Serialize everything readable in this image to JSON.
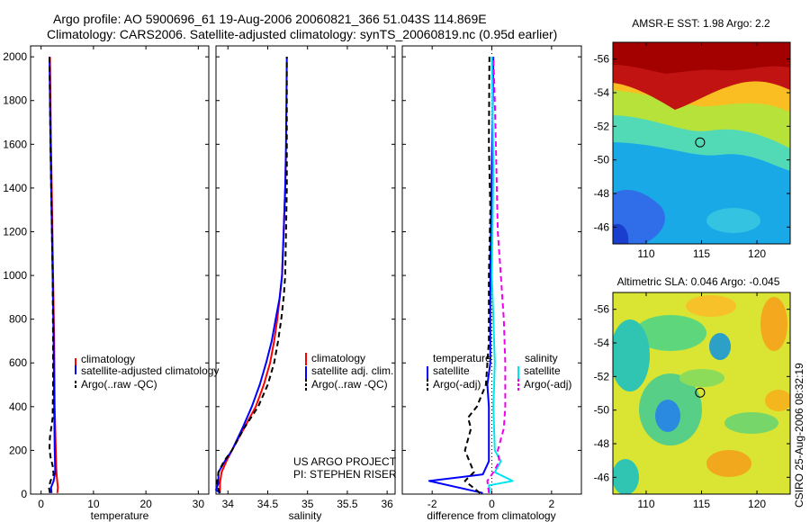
{
  "header": {
    "line1": "Argo profile: AO 5900696_61 19-Aug-2006 20060821_366 51.043S 114.869E",
    "line2": "Climatology: CARS2006. Satellite-adjusted climatology: synTS_20060819.nc (0.95d earlier)"
  },
  "side_stamp": "CSIRO 25-Aug-2006 08:32:19",
  "colors": {
    "red": "#ff0000",
    "blue": "#0000ff",
    "black": "#000000",
    "cyan": "#00e5ee",
    "magenta": "#ee00ee"
  },
  "chart_data": [
    {
      "id": "temperature",
      "type": "line",
      "xlabel": "temperature",
      "xlim": [
        -2,
        32
      ],
      "ylim": [
        2050,
        0
      ],
      "xticks": [
        0,
        10,
        20,
        30
      ],
      "yticks": [
        0,
        200,
        400,
        600,
        800,
        1000,
        1200,
        1400,
        1600,
        1800,
        2000
      ],
      "legend": [
        "climatology",
        "satellite-adjusted climatology",
        "Argo(..raw -QC)"
      ],
      "series": [
        {
          "name": "climatology",
          "color": "red",
          "dash": "",
          "points": [
            [
              3.1,
              5
            ],
            [
              3.2,
              30
            ],
            [
              3.0,
              80
            ],
            [
              2.9,
              120
            ],
            [
              2.8,
              200
            ],
            [
              2.6,
              400
            ],
            [
              2.5,
              700
            ],
            [
              2.3,
              1000
            ],
            [
              2.1,
              1300
            ],
            [
              1.9,
              1600
            ],
            [
              1.7,
              2000
            ]
          ]
        },
        {
          "name": "satellite-adjusted climatology",
          "color": "blue",
          "dash": "",
          "points": [
            [
              2.0,
              5
            ],
            [
              1.9,
              30
            ],
            [
              2.4,
              60
            ],
            [
              2.7,
              100
            ],
            [
              2.6,
              200
            ],
            [
              2.5,
              400
            ],
            [
              2.4,
              700
            ],
            [
              2.2,
              1000
            ],
            [
              2.0,
              1300
            ],
            [
              1.8,
              1600
            ],
            [
              1.6,
              2000
            ]
          ]
        },
        {
          "name": "Argo(..raw -QC)",
          "color": "black",
          "dash": "6,4",
          "points": [
            [
              1.7,
              5
            ],
            [
              1.5,
              30
            ],
            [
              1.8,
              60
            ],
            [
              2.4,
              90
            ],
            [
              2.2,
              130
            ],
            [
              1.8,
              170
            ],
            [
              1.6,
              210
            ],
            [
              1.7,
              260
            ],
            [
              2.2,
              350
            ],
            [
              2.3,
              500
            ],
            [
              2.3,
              700
            ],
            [
              2.2,
              1000
            ],
            [
              2.0,
              1300
            ],
            [
              1.8,
              1600
            ],
            [
              1.6,
              2000
            ]
          ]
        }
      ]
    },
    {
      "id": "salinity",
      "type": "line",
      "xlabel": "salinity",
      "xlim": [
        33.85,
        36.1
      ],
      "ylim": [
        2050,
        0
      ],
      "xticks": [
        34,
        34.5,
        35,
        35.5,
        36
      ],
      "xticklabels": [
        "34",
        "34.5",
        "35",
        "35.5",
        "36"
      ],
      "legend": [
        "climatology",
        "satellite adj. clim.",
        "Argo(..raw -QC)"
      ],
      "annotations": [
        "US ARGO PROJECT",
        "PI: STEPHEN RISER"
      ],
      "series": [
        {
          "name": "climatology",
          "color": "red",
          "dash": "",
          "points": [
            [
              33.9,
              5
            ],
            [
              33.9,
              50
            ],
            [
              33.92,
              100
            ],
            [
              33.98,
              150
            ],
            [
              34.05,
              200
            ],
            [
              34.2,
              300
            ],
            [
              34.35,
              400
            ],
            [
              34.45,
              500
            ],
            [
              34.53,
              600
            ],
            [
              34.58,
              700
            ],
            [
              34.62,
              800
            ],
            [
              34.65,
              900
            ],
            [
              34.68,
              1000
            ],
            [
              34.7,
              1200
            ],
            [
              34.72,
              1400
            ],
            [
              34.73,
              1560
            ]
          ]
        },
        {
          "name": "satellite adj. clim.",
          "color": "blue",
          "dash": "",
          "points": [
            [
              33.9,
              5
            ],
            [
              33.85,
              20
            ],
            [
              33.88,
              50
            ],
            [
              33.88,
              100
            ],
            [
              33.96,
              150
            ],
            [
              34.05,
              200
            ],
            [
              34.18,
              300
            ],
            [
              34.3,
              400
            ],
            [
              34.4,
              500
            ],
            [
              34.48,
              600
            ],
            [
              34.55,
              700
            ],
            [
              34.6,
              800
            ],
            [
              34.65,
              900
            ],
            [
              34.68,
              1000
            ],
            [
              34.7,
              1200
            ],
            [
              34.72,
              1400
            ],
            [
              34.73,
              1600
            ],
            [
              34.74,
              2000
            ]
          ]
        },
        {
          "name": "Argo(..raw -QC)",
          "color": "black",
          "dash": "6,4",
          "points": [
            [
              33.9,
              5
            ],
            [
              33.86,
              40
            ],
            [
              33.88,
              100
            ],
            [
              33.95,
              150
            ],
            [
              34.05,
              200
            ],
            [
              34.2,
              300
            ],
            [
              34.38,
              400
            ],
            [
              34.5,
              500
            ],
            [
              34.58,
              600
            ],
            [
              34.63,
              700
            ],
            [
              34.67,
              800
            ],
            [
              34.7,
              900
            ],
            [
              34.72,
              1000
            ],
            [
              34.73,
              1200
            ],
            [
              34.74,
              1400
            ],
            [
              34.74,
              1600
            ],
            [
              34.74,
              2000
            ]
          ]
        }
      ]
    },
    {
      "id": "difference",
      "type": "line",
      "xlabel": "difference from climatology",
      "xlim": [
        -3,
        3
      ],
      "ylim": [
        2050,
        0
      ],
      "xticks": [
        -2,
        0,
        2
      ],
      "legend": [
        "temperature",
        "salinity",
        "satellite",
        "satellite",
        "Argo(-adj)",
        "Argo(-adj)"
      ],
      "series": [
        {
          "name": "temperature satellite",
          "color": "blue",
          "dash": "",
          "points": [
            [
              -0.3,
              5
            ],
            [
              -2.1,
              60
            ],
            [
              -0.3,
              90
            ],
            [
              -0.1,
              150
            ],
            [
              -0.1,
              300
            ],
            [
              -0.1,
              400
            ],
            [
              -0.15,
              500
            ],
            [
              -0.05,
              600
            ],
            [
              -0.05,
              1000
            ],
            [
              0.0,
              1500
            ],
            [
              0.05,
              2000
            ]
          ]
        },
        {
          "name": "temperature Argo(-adj)",
          "color": "black",
          "dash": "6,4",
          "points": [
            [
              -0.4,
              5
            ],
            [
              -0.9,
              60
            ],
            [
              -0.6,
              100
            ],
            [
              -0.9,
              200
            ],
            [
              -0.7,
              300
            ],
            [
              -0.8,
              350
            ],
            [
              -0.5,
              400
            ],
            [
              -0.2,
              500
            ],
            [
              -0.1,
              700
            ],
            [
              -0.1,
              1000
            ],
            [
              -0.05,
              1300
            ],
            [
              -0.1,
              1600
            ],
            [
              -0.08,
              2000
            ]
          ]
        },
        {
          "name": "salinity satellite",
          "color": "cyan",
          "dash": "",
          "points": [
            [
              -0.05,
              5
            ],
            [
              -0.1,
              40
            ],
            [
              0.7,
              60
            ],
            [
              0.1,
              100
            ],
            [
              0.3,
              150
            ],
            [
              0.1,
              200
            ],
            [
              0.05,
              400
            ],
            [
              0.1,
              600
            ],
            [
              0.05,
              800
            ],
            [
              0.0,
              1000
            ],
            [
              0.05,
              1500
            ],
            [
              0.0,
              2000
            ]
          ]
        },
        {
          "name": "salinity Argo(-adj)",
          "color": "magenta",
          "dash": "6,4",
          "points": [
            [
              -0.1,
              5
            ],
            [
              -0.15,
              60
            ],
            [
              0.05,
              100
            ],
            [
              0.25,
              150
            ],
            [
              0.2,
              200
            ],
            [
              0.4,
              300
            ],
            [
              0.45,
              400
            ],
            [
              0.45,
              600
            ],
            [
              0.4,
              800
            ],
            [
              0.3,
              1000
            ],
            [
              0.2,
              1200
            ],
            [
              0.15,
              1500
            ],
            [
              0.1,
              1800
            ],
            [
              0.05,
              2000
            ]
          ]
        }
      ]
    },
    {
      "id": "sst_map",
      "type": "heatmap",
      "title": "AMSR-E SST: 1.98 Argo: 2.2",
      "xlim": [
        107,
        123
      ],
      "ylim": [
        -57,
        -45
      ],
      "xticks": [
        110,
        115,
        120
      ],
      "yticks": [
        -46,
        -48,
        -50,
        -52,
        -54,
        -56
      ],
      "marker": [
        114.869,
        -51.043
      ]
    },
    {
      "id": "sla_map",
      "type": "heatmap",
      "title": "Altimetric SLA: 0.046 Argo: -0.045",
      "xlim": [
        107,
        123
      ],
      "ylim": [
        -57,
        -45
      ],
      "xticks": [
        110,
        115,
        120
      ],
      "yticks": [
        -46,
        -48,
        -50,
        -52,
        -54,
        -56
      ],
      "marker": [
        114.869,
        -51.043
      ]
    }
  ]
}
